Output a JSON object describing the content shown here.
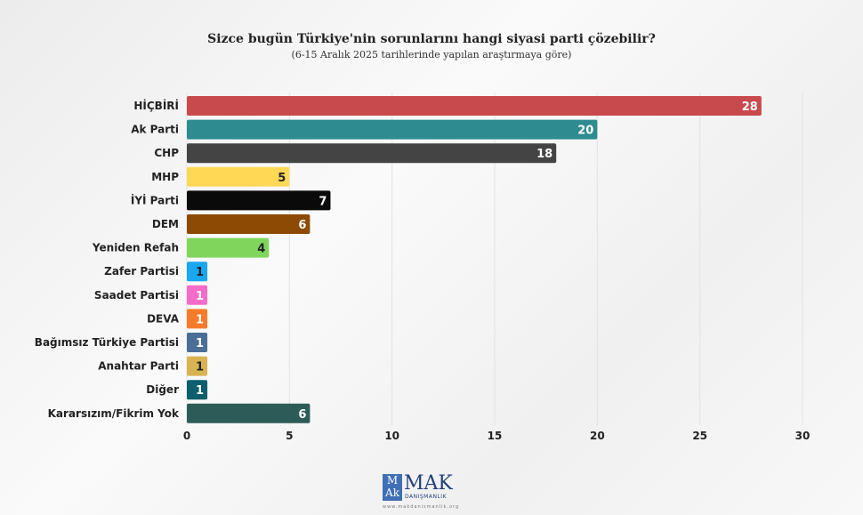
{
  "chart_data": {
    "type": "bar",
    "orientation": "horizontal",
    "title": "Sizce bugün Türkiye'nin sorunlarını hangi siyasi parti çözebilir?",
    "subtitle": "(6-15 Aralık 2025 tarihlerinde yapılan araştırmaya göre)",
    "categories": [
      "HİÇBİRİ",
      "Ak Parti",
      "CHP",
      "MHP",
      "İYİ Parti",
      "DEM",
      "Yeniden Refah",
      "Zafer Partisi",
      "Saadet Partisi",
      "DEVA",
      "Bağımsız Türkiye Partisi",
      "Anahtar Parti",
      "Diğer",
      "Kararsızım/Fikrim Yok"
    ],
    "values": [
      28,
      20,
      18,
      5,
      7,
      6,
      4,
      1,
      1,
      1,
      1,
      1,
      1,
      6
    ],
    "colors": [
      "#c94a4c",
      "#2e8c90",
      "#444444",
      "#ffd955",
      "#0a0a0a",
      "#8c4a05",
      "#80d65c",
      "#1aa7f2",
      "#f46cc9",
      "#f77b2b",
      "#4a6e96",
      "#d8b352",
      "#0c5f6c",
      "#2d5c58"
    ],
    "label_colors": [
      "#ffffff",
      "#ffffff",
      "#ffffff",
      "#222222",
      "#ffffff",
      "#ffffff",
      "#222222",
      "#222222",
      "#ffffff",
      "#ffffff",
      "#ffffff",
      "#222222",
      "#ffffff",
      "#ffffff"
    ],
    "xlim": [
      0,
      30
    ],
    "xticks": [
      0,
      5,
      10,
      15,
      20,
      25,
      30
    ],
    "grid": true,
    "legend": "none"
  },
  "logo": {
    "mark": "MAK",
    "name": "MAK",
    "tagline": "DANIŞMANLIK",
    "website": "www.makdanismanlik.org"
  }
}
